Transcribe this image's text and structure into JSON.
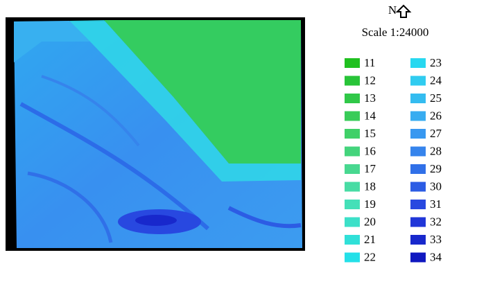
{
  "map": {
    "north": "N",
    "scale": "Scale 1:24000",
    "legend": [
      {
        "label": "11",
        "color": "#20c020"
      },
      {
        "label": "12",
        "color": "#28c438"
      },
      {
        "label": "13",
        "color": "#30c848"
      },
      {
        "label": "14",
        "color": "#38cc58"
      },
      {
        "label": "15",
        "color": "#40d068"
      },
      {
        "label": "16",
        "color": "#44d47c"
      },
      {
        "label": "17",
        "color": "#48d890"
      },
      {
        "label": "18",
        "color": "#48dca4"
      },
      {
        "label": "19",
        "color": "#44e0b8"
      },
      {
        "label": "20",
        "color": "#3ce0c8"
      },
      {
        "label": "21",
        "color": "#30e0d8"
      },
      {
        "label": "22",
        "color": "#24e0e8"
      },
      {
        "label": "23",
        "color": "#28d8f0"
      },
      {
        "label": "24",
        "color": "#30ccf0"
      },
      {
        "label": "25",
        "color": "#34bcf0"
      },
      {
        "label": "26",
        "color": "#38acf0"
      },
      {
        "label": "27",
        "color": "#3898f0"
      },
      {
        "label": "28",
        "color": "#3684ec"
      },
      {
        "label": "29",
        "color": "#3070e8"
      },
      {
        "label": "30",
        "color": "#2c5ce4"
      },
      {
        "label": "31",
        "color": "#2848e0"
      },
      {
        "label": "32",
        "color": "#2036d8"
      },
      {
        "label": "33",
        "color": "#1828cc"
      },
      {
        "label": "34",
        "color": "#1018c0"
      }
    ]
  }
}
